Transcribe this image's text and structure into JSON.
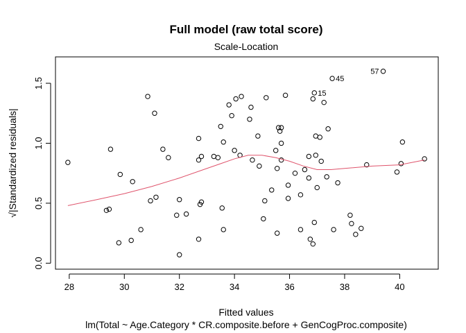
{
  "chart_data": {
    "type": "scatter",
    "title": "Full model (raw total score)",
    "subtitle": "Scale-Location",
    "xlabel": "Fitted values",
    "ylabel": "√|Standardized residuals|",
    "caption": "lm(Total ~ Age.Category * CR.composite.before + GenCogProc.composite)",
    "xlim": [
      27.5,
      41.4
    ],
    "ylim": [
      -0.05,
      1.72
    ],
    "x_ticks": [
      "28",
      "30",
      "32",
      "34",
      "36",
      "38",
      "40"
    ],
    "y_ticks": [
      "0.0",
      "0.5",
      "1.0",
      "1.5"
    ],
    "x_tick_values": [
      28,
      30,
      32,
      34,
      36,
      38,
      40
    ],
    "y_tick_values": [
      0.0,
      0.5,
      1.0,
      1.5
    ],
    "grid": false,
    "point_color": "#000000",
    "smooth_color": "#DF536B",
    "points": [
      [
        27.95,
        0.84
      ],
      [
        29.35,
        0.44
      ],
      [
        29.45,
        0.45
      ],
      [
        29.5,
        0.95
      ],
      [
        29.8,
        0.17
      ],
      [
        29.85,
        0.74
      ],
      [
        30.25,
        0.19
      ],
      [
        30.3,
        0.68
      ],
      [
        30.6,
        0.28
      ],
      [
        30.85,
        1.39
      ],
      [
        30.95,
        0.52
      ],
      [
        31.1,
        1.25
      ],
      [
        31.15,
        0.55
      ],
      [
        31.4,
        0.95
      ],
      [
        31.6,
        0.88
      ],
      [
        31.9,
        0.4
      ],
      [
        32.0,
        0.53
      ],
      [
        32.0,
        0.07
      ],
      [
        32.25,
        0.41
      ],
      [
        32.7,
        0.2
      ],
      [
        32.7,
        1.04
      ],
      [
        32.7,
        0.86
      ],
      [
        32.75,
        0.49
      ],
      [
        32.8,
        0.51
      ],
      [
        32.8,
        0.89
      ],
      [
        33.25,
        0.89
      ],
      [
        33.4,
        0.88
      ],
      [
        33.5,
        1.14
      ],
      [
        33.55,
        0.46
      ],
      [
        33.6,
        0.28
      ],
      [
        33.6,
        1.01
      ],
      [
        33.8,
        1.32
      ],
      [
        33.9,
        1.23
      ],
      [
        34.0,
        0.94
      ],
      [
        34.05,
        1.37
      ],
      [
        34.2,
        0.9
      ],
      [
        34.25,
        1.39
      ],
      [
        34.55,
        1.2
      ],
      [
        34.6,
        1.3
      ],
      [
        34.65,
        0.86
      ],
      [
        34.85,
        1.06
      ],
      [
        34.9,
        0.81
      ],
      [
        35.05,
        0.37
      ],
      [
        35.1,
        0.52
      ],
      [
        35.15,
        1.38
      ],
      [
        35.35,
        0.61
      ],
      [
        35.5,
        0.94
      ],
      [
        35.55,
        0.79
      ],
      [
        35.55,
        0.25
      ],
      [
        35.6,
        1.13
      ],
      [
        35.65,
        1.1
      ],
      [
        35.7,
        1.13
      ],
      [
        35.7,
        1.0
      ],
      [
        35.7,
        0.86
      ],
      [
        35.85,
        1.4
      ],
      [
        35.95,
        0.54
      ],
      [
        35.95,
        0.65
      ],
      [
        36.2,
        0.75
      ],
      [
        36.4,
        0.57
      ],
      [
        36.4,
        0.28
      ],
      [
        36.55,
        0.78
      ],
      [
        36.7,
        0.71
      ],
      [
        36.7,
        0.89
      ],
      [
        36.75,
        0.2
      ],
      [
        36.85,
        0.16
      ],
      [
        36.85,
        1.37
      ],
      [
        36.9,
        1.42
      ],
      [
        36.9,
        0.34
      ],
      [
        36.95,
        0.9
      ],
      [
        36.95,
        1.06
      ],
      [
        37.0,
        0.63
      ],
      [
        37.1,
        1.05
      ],
      [
        37.15,
        0.85
      ],
      [
        37.25,
        1.34
      ],
      [
        37.35,
        0.72
      ],
      [
        37.4,
        1.12
      ],
      [
        37.6,
        0.28
      ],
      [
        37.75,
        0.67
      ],
      [
        38.2,
        0.4
      ],
      [
        38.25,
        0.33
      ],
      [
        38.4,
        0.24
      ],
      [
        38.6,
        0.29
      ],
      [
        38.8,
        0.82
      ],
      [
        39.9,
        0.76
      ],
      [
        40.05,
        0.83
      ],
      [
        40.1,
        1.01
      ],
      [
        40.9,
        0.87
      ],
      [
        37.55,
        1.54
      ],
      [
        39.4,
        1.6
      ]
    ],
    "labeled_points": [
      {
        "label": "57",
        "x": 39.4,
        "y": 1.6
      },
      {
        "label": "45",
        "x": 37.55,
        "y": 1.54
      },
      {
        "label": "15",
        "x": 36.9,
        "y": 1.42
      }
    ],
    "smooth_line": {
      "x": [
        27.95,
        29,
        30,
        31,
        32,
        33,
        33.5,
        34,
        34.5,
        35,
        35.5,
        36,
        36.5,
        37,
        37.5,
        38,
        39,
        40,
        40.9
      ],
      "y": [
        0.48,
        0.53,
        0.58,
        0.64,
        0.71,
        0.79,
        0.83,
        0.87,
        0.9,
        0.9,
        0.88,
        0.85,
        0.81,
        0.78,
        0.78,
        0.79,
        0.81,
        0.82,
        0.86
      ]
    }
  }
}
